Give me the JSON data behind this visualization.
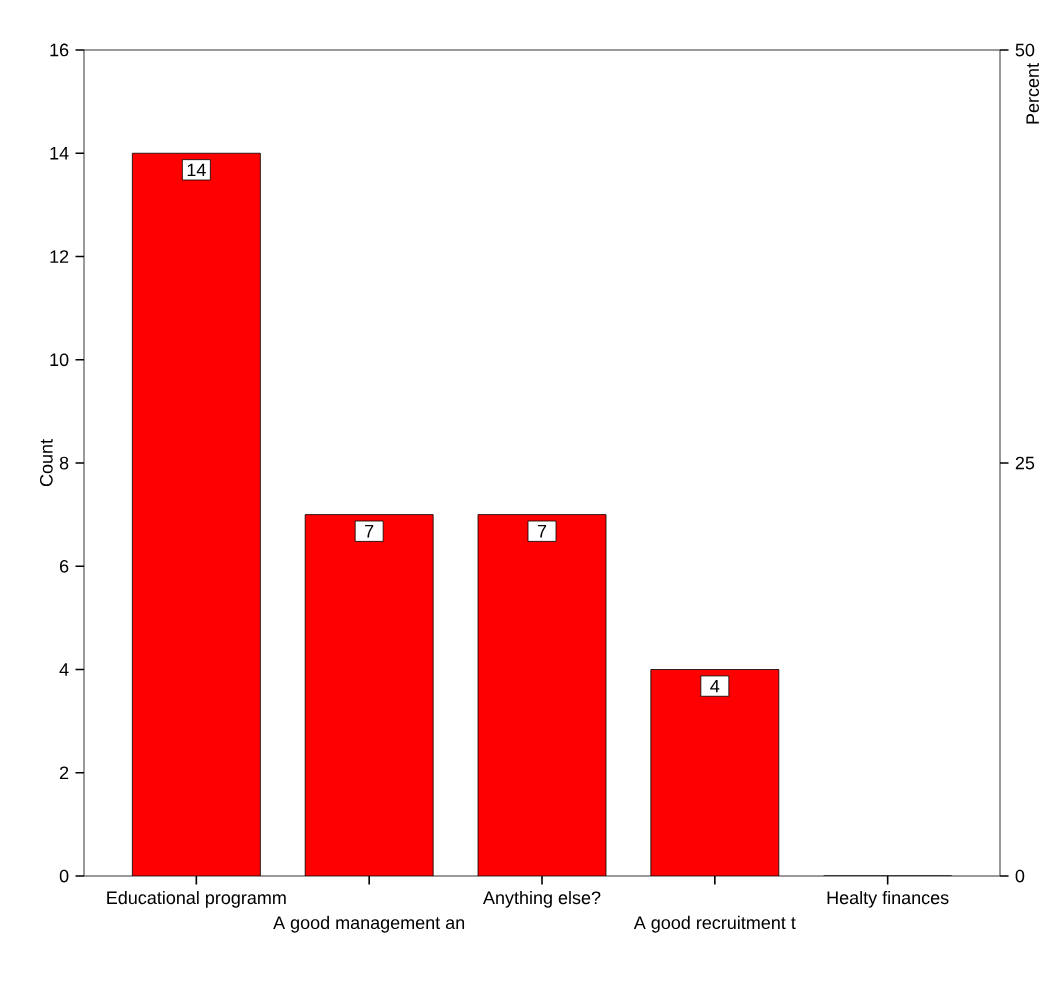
{
  "chart_data": {
    "type": "bar",
    "ylabel": "Count",
    "y2label": "Percent",
    "categories": [
      "Educational programm",
      "A good management an",
      "Anything else?",
      "A good recruitment t",
      "Healty finances"
    ],
    "values": [
      14,
      7,
      7,
      4,
      0
    ],
    "color": "#ff0000",
    "value_labels": [
      "14",
      "7",
      "7",
      "4",
      null
    ],
    "ylim": [
      0,
      16
    ],
    "yticks": [
      0,
      2,
      4,
      6,
      8,
      10,
      12,
      14,
      16
    ],
    "y2lim": [
      0,
      50
    ],
    "y2ticks": [
      0,
      25,
      50
    ],
    "grid": false
  }
}
